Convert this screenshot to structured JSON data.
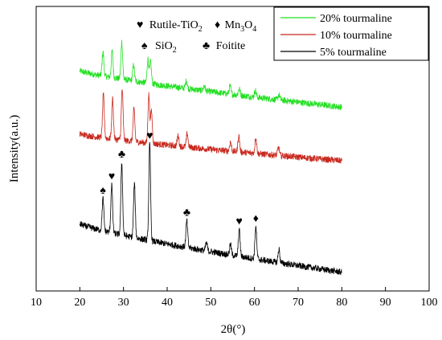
{
  "chart_data": {
    "type": "line",
    "xlabel": "2θ(°)",
    "ylabel": "Intensity(a.u.)",
    "xlim": [
      10,
      100
    ],
    "x_ticks": [
      "10",
      "20",
      "30",
      "40",
      "50",
      "60",
      "70",
      "80",
      "90",
      "100"
    ],
    "y_ticks_shown": false,
    "grid": false,
    "legend_placement": "top-right",
    "series": [
      {
        "name": "20% tourmaline",
        "color": "#22e022",
        "x_range": [
          20,
          80
        ],
        "baseline_start": 0.79,
        "baseline_end": 0.655,
        "noise": 0.012,
        "peaks": [
          [
            25.3,
            0.09
          ],
          [
            27.4,
            0.1
          ],
          [
            29.6,
            0.14
          ],
          [
            32.3,
            0.06
          ],
          [
            35.6,
            0.09
          ],
          [
            36.2,
            0.08
          ],
          [
            44.4,
            0.03
          ],
          [
            48.5,
            0.02
          ],
          [
            54.4,
            0.03
          ],
          [
            56.5,
            0.025
          ],
          [
            60.2,
            0.025
          ],
          [
            65.6,
            0.02
          ]
        ]
      },
      {
        "name": "10% tourmaline",
        "color": "#c8281e",
        "x_range": [
          20,
          80
        ],
        "baseline_start": 0.555,
        "baseline_end": 0.455,
        "noise": 0.012,
        "peaks": [
          [
            25.4,
            0.16
          ],
          [
            27.5,
            0.15
          ],
          [
            29.7,
            0.19
          ],
          [
            32.4,
            0.12
          ],
          [
            35.8,
            0.18
          ],
          [
            36.4,
            0.12
          ],
          [
            42.5,
            0.04
          ],
          [
            44.6,
            0.05
          ],
          [
            54.5,
            0.035
          ],
          [
            56.4,
            0.06
          ],
          [
            60.3,
            0.06
          ],
          [
            65.5,
            0.03
          ]
        ]
      },
      {
        "name": "5% tourmaline",
        "color": "#000000",
        "x_range": [
          20,
          80
        ],
        "baseline_start": 0.22,
        "baseline_end": 0.04,
        "noise": 0.012,
        "peaks": [
          [
            25.3,
            0.12
          ],
          [
            27.3,
            0.18
          ],
          [
            29.6,
            0.27
          ],
          [
            32.5,
            0.2
          ],
          [
            36.0,
            0.36
          ],
          [
            44.5,
            0.1
          ],
          [
            49.0,
            0.03
          ],
          [
            54.5,
            0.04
          ],
          [
            56.5,
            0.1
          ],
          [
            60.3,
            0.12
          ],
          [
            65.6,
            0.05
          ]
        ]
      }
    ],
    "phase_legend": [
      {
        "symbol": "♥",
        "label": "Rutile-TiO",
        "sub": "2"
      },
      {
        "symbol": "♦",
        "label": "Mn",
        "sub": "3",
        "label2": "O",
        "sub2": "4"
      },
      {
        "symbol": "♠",
        "label": "SiO",
        "sub": "2"
      },
      {
        "symbol": "♣",
        "label": "Foitite"
      }
    ],
    "markers": [
      {
        "symbol": "♠",
        "x": 25.3
      },
      {
        "symbol": "♥",
        "x": 27.3
      },
      {
        "symbol": "♣",
        "x": 29.6
      },
      {
        "symbol": "♥",
        "x": 36.0
      },
      {
        "symbol": "♣",
        "x": 44.5
      },
      {
        "symbol": "♥",
        "x": 56.5
      },
      {
        "symbol": "♦",
        "x": 60.3
      }
    ]
  }
}
